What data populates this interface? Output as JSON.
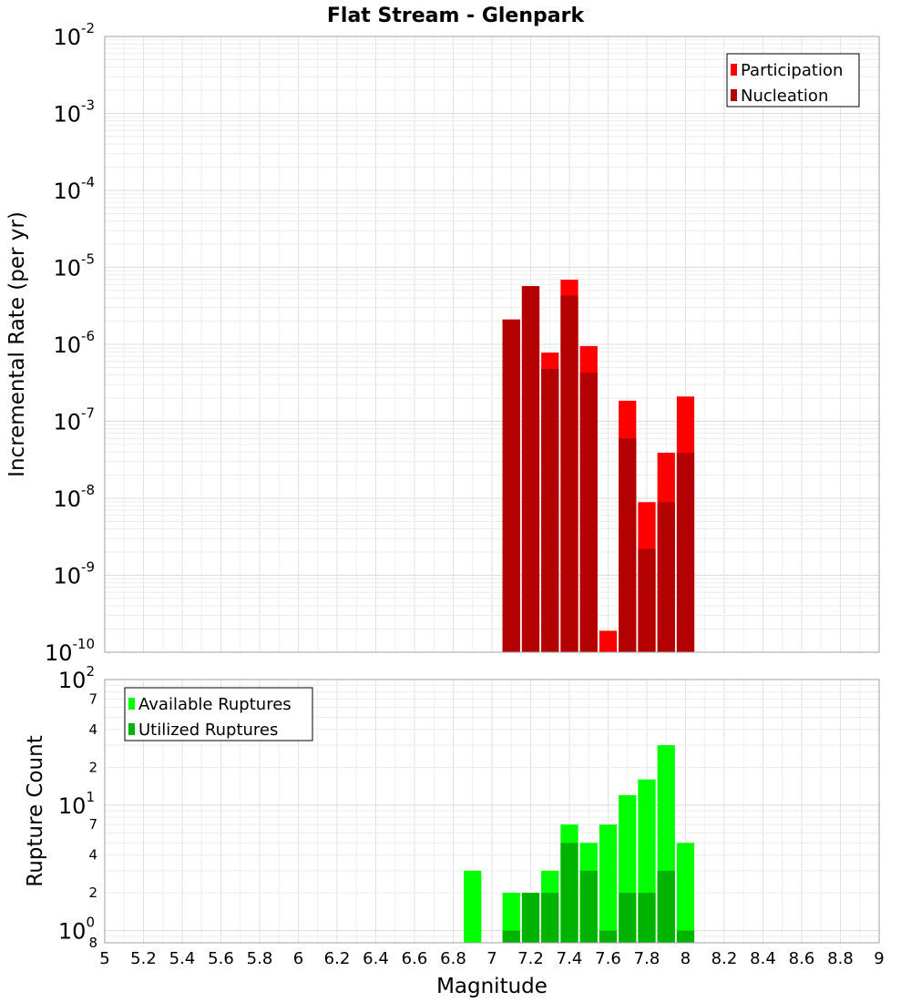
{
  "chart_data": [
    {
      "type": "bar",
      "title": "Flat Stream - Glenpark",
      "xlabel": "Magnitude",
      "ylabel": "Incremental Rate (per yr)",
      "y_scale": "log",
      "xlim": [
        5,
        9
      ],
      "ylim": [
        1e-10,
        0.01
      ],
      "bin_width": 0.1,
      "y_tick_labels": [
        {
          "value": 1e-10,
          "base": "10",
          "exp": "-10"
        },
        {
          "value": 1e-09,
          "base": "10",
          "exp": "-9"
        },
        {
          "value": 1e-08,
          "base": "10",
          "exp": "-8"
        },
        {
          "value": 1e-07,
          "base": "10",
          "exp": "-7"
        },
        {
          "value": 1e-06,
          "base": "10",
          "exp": "-6"
        },
        {
          "value": 1e-05,
          "base": "10",
          "exp": "-5"
        },
        {
          "value": 0.0001,
          "base": "10",
          "exp": "-4"
        },
        {
          "value": 0.001,
          "base": "10",
          "exp": "-3"
        },
        {
          "value": 0.01,
          "base": "10",
          "exp": "-2"
        }
      ],
      "legend": {
        "position": "top-right",
        "entries": [
          {
            "name": "Participation",
            "color": "#ff0000"
          },
          {
            "name": "Nucleation",
            "color": "#b30000"
          }
        ]
      },
      "x": [
        7.1,
        7.2,
        7.3,
        7.4,
        7.5,
        7.6,
        7.7,
        7.8,
        7.9,
        8.0
      ],
      "series": [
        {
          "name": "Participation",
          "color": "#ff0000",
          "values": [
            2.1e-06,
            5.7e-06,
            7.8e-07,
            6.9e-06,
            9.5e-07,
            1.9e-10,
            1.85e-07,
            8.9e-09,
            3.9e-08,
            2.1e-07
          ]
        },
        {
          "name": "Nucleation",
          "color": "#b30000",
          "values": [
            2.1e-06,
            5.7e-06,
            4.8e-07,
            4.3e-06,
            4.3e-07,
            1e-10,
            6e-08,
            2.2e-09,
            8.9e-09,
            3.9e-08
          ]
        }
      ]
    },
    {
      "type": "bar",
      "xlabel": "Magnitude",
      "ylabel": "Rupture Count",
      "y_scale": "log",
      "xlim": [
        5,
        9
      ],
      "ylim": [
        0.8,
        100
      ],
      "bin_width": 0.1,
      "x_ticks": [
        "5",
        "5.2",
        "5.4",
        "5.6",
        "5.8",
        "6",
        "6.2",
        "6.4",
        "6.6",
        "6.8",
        "7",
        "7.2",
        "7.4",
        "7.6",
        "7.8",
        "8",
        "8.2",
        "8.4",
        "8.6",
        "8.8",
        "9"
      ],
      "y_tick_labels": [
        {
          "value": 100,
          "base": "10",
          "exp": "2"
        },
        {
          "value": 10,
          "base": "10",
          "exp": "1"
        },
        {
          "value": 1,
          "base": "10",
          "exp": "0"
        }
      ],
      "y_minor_labels": [
        {
          "value": 70,
          "label": "7"
        },
        {
          "value": 40,
          "label": "4"
        },
        {
          "value": 20,
          "label": "2"
        },
        {
          "value": 7,
          "label": "7"
        },
        {
          "value": 4,
          "label": "4"
        },
        {
          "value": 2,
          "label": "2"
        },
        {
          "value": 0.8,
          "label": "8"
        }
      ],
      "legend": {
        "position": "top-left",
        "entries": [
          {
            "name": "Available Ruptures",
            "color": "#00ff00"
          },
          {
            "name": "Utilized Ruptures",
            "color": "#00b300"
          }
        ]
      },
      "x": [
        6.9,
        7.1,
        7.2,
        7.3,
        7.4,
        7.5,
        7.6,
        7.7,
        7.8,
        7.9,
        8.0
      ],
      "series": [
        {
          "name": "Available Ruptures",
          "color": "#00ff00",
          "values": [
            3,
            2,
            2,
            3,
            7,
            5,
            7,
            12,
            16,
            30,
            5
          ]
        },
        {
          "name": "Utilized Ruptures",
          "color": "#00b300",
          "values": [
            0,
            1,
            2,
            2,
            5,
            3,
            1,
            2,
            2,
            3,
            1
          ]
        }
      ]
    }
  ]
}
